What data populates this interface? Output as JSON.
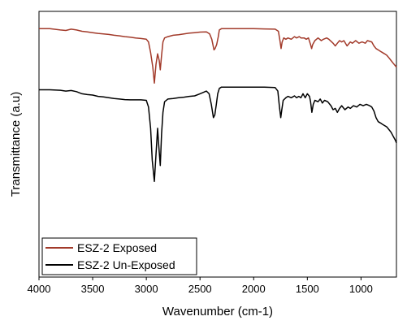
{
  "chart_data": {
    "type": "line",
    "xlabel": "Wavenumber (cm-1)",
    "ylabel": "Transmittance (a.u)",
    "xlim": [
      4000,
      670
    ],
    "ylim": [
      0,
      1
    ],
    "x_ticks": [
      4000,
      3500,
      3000,
      2500,
      2000,
      1500,
      1000
    ],
    "x_tick_labels": [
      "4000",
      "3500",
      "3000",
      "2500",
      "2000",
      "1500",
      "1000"
    ],
    "y_tick_labels_shown": false,
    "grid": false,
    "legend_position": "bottom-left",
    "series": [
      {
        "name": "ESZ-2 Exposed",
        "color": "#a23a2a",
        "points": [
          [
            4000,
            0.935
          ],
          [
            3900,
            0.935
          ],
          [
            3800,
            0.93
          ],
          [
            3750,
            0.928
          ],
          [
            3700,
            0.933
          ],
          [
            3650,
            0.93
          ],
          [
            3600,
            0.925
          ],
          [
            3550,
            0.923
          ],
          [
            3500,
            0.92
          ],
          [
            3450,
            0.917
          ],
          [
            3400,
            0.915
          ],
          [
            3350,
            0.913
          ],
          [
            3300,
            0.91
          ],
          [
            3250,
            0.908
          ],
          [
            3200,
            0.905
          ],
          [
            3150,
            0.903
          ],
          [
            3100,
            0.9
          ],
          [
            3050,
            0.898
          ],
          [
            3000,
            0.895
          ],
          [
            2980,
            0.885
          ],
          [
            2960,
            0.845
          ],
          [
            2940,
            0.79
          ],
          [
            2925,
            0.73
          ],
          [
            2910,
            0.8
          ],
          [
            2895,
            0.84
          ],
          [
            2880,
            0.815
          ],
          [
            2870,
            0.78
          ],
          [
            2858,
            0.835
          ],
          [
            2845,
            0.885
          ],
          [
            2830,
            0.9
          ],
          [
            2800,
            0.905
          ],
          [
            2750,
            0.91
          ],
          [
            2700,
            0.912
          ],
          [
            2650,
            0.915
          ],
          [
            2600,
            0.918
          ],
          [
            2550,
            0.92
          ],
          [
            2500,
            0.922
          ],
          [
            2440,
            0.923
          ],
          [
            2410,
            0.915
          ],
          [
            2390,
            0.895
          ],
          [
            2370,
            0.855
          ],
          [
            2360,
            0.86
          ],
          [
            2345,
            0.875
          ],
          [
            2330,
            0.905
          ],
          [
            2320,
            0.93
          ],
          [
            2300,
            0.935
          ],
          [
            2200,
            0.935
          ],
          [
            2100,
            0.935
          ],
          [
            2000,
            0.935
          ],
          [
            1900,
            0.934
          ],
          [
            1800,
            0.933
          ],
          [
            1770,
            0.925
          ],
          [
            1755,
            0.89
          ],
          [
            1745,
            0.86
          ],
          [
            1735,
            0.885
          ],
          [
            1720,
            0.9
          ],
          [
            1700,
            0.895
          ],
          [
            1680,
            0.9
          ],
          [
            1650,
            0.895
          ],
          [
            1620,
            0.905
          ],
          [
            1600,
            0.9
          ],
          [
            1575,
            0.905
          ],
          [
            1560,
            0.9
          ],
          [
            1530,
            0.9
          ],
          [
            1510,
            0.895
          ],
          [
            1490,
            0.9
          ],
          [
            1470,
            0.875
          ],
          [
            1460,
            0.86
          ],
          [
            1450,
            0.875
          ],
          [
            1430,
            0.89
          ],
          [
            1400,
            0.9
          ],
          [
            1370,
            0.89
          ],
          [
            1350,
            0.895
          ],
          [
            1320,
            0.9
          ],
          [
            1300,
            0.895
          ],
          [
            1260,
            0.88
          ],
          [
            1240,
            0.87
          ],
          [
            1220,
            0.88
          ],
          [
            1200,
            0.89
          ],
          [
            1180,
            0.885
          ],
          [
            1160,
            0.89
          ],
          [
            1130,
            0.87
          ],
          [
            1100,
            0.885
          ],
          [
            1080,
            0.88
          ],
          [
            1050,
            0.89
          ],
          [
            1020,
            0.88
          ],
          [
            990,
            0.885
          ],
          [
            960,
            0.88
          ],
          [
            940,
            0.89
          ],
          [
            900,
            0.885
          ],
          [
            880,
            0.87
          ],
          [
            860,
            0.86
          ],
          [
            840,
            0.855
          ],
          [
            820,
            0.85
          ],
          [
            800,
            0.845
          ],
          [
            780,
            0.84
          ],
          [
            760,
            0.835
          ],
          [
            740,
            0.825
          ],
          [
            720,
            0.815
          ],
          [
            700,
            0.805
          ],
          [
            680,
            0.795
          ],
          [
            670,
            0.79
          ]
        ]
      },
      {
        "name": "ESZ-2 Un-Exposed",
        "color": "#000000",
        "points": [
          [
            4000,
            0.705
          ],
          [
            3900,
            0.705
          ],
          [
            3800,
            0.703
          ],
          [
            3750,
            0.7
          ],
          [
            3700,
            0.702
          ],
          [
            3650,
            0.698
          ],
          [
            3600,
            0.69
          ],
          [
            3550,
            0.687
          ],
          [
            3500,
            0.685
          ],
          [
            3450,
            0.68
          ],
          [
            3400,
            0.678
          ],
          [
            3350,
            0.675
          ],
          [
            3300,
            0.672
          ],
          [
            3250,
            0.67
          ],
          [
            3200,
            0.668
          ],
          [
            3150,
            0.667
          ],
          [
            3100,
            0.667
          ],
          [
            3050,
            0.667
          ],
          [
            3000,
            0.665
          ],
          [
            2980,
            0.64
          ],
          [
            2960,
            0.56
          ],
          [
            2945,
            0.44
          ],
          [
            2925,
            0.36
          ],
          [
            2910,
            0.46
          ],
          [
            2895,
            0.56
          ],
          [
            2885,
            0.5
          ],
          [
            2870,
            0.42
          ],
          [
            2858,
            0.54
          ],
          [
            2845,
            0.62
          ],
          [
            2830,
            0.66
          ],
          [
            2800,
            0.67
          ],
          [
            2750,
            0.672
          ],
          [
            2700,
            0.675
          ],
          [
            2650,
            0.677
          ],
          [
            2600,
            0.68
          ],
          [
            2550,
            0.682
          ],
          [
            2500,
            0.69
          ],
          [
            2440,
            0.7
          ],
          [
            2415,
            0.69
          ],
          [
            2395,
            0.65
          ],
          [
            2375,
            0.6
          ],
          [
            2362,
            0.61
          ],
          [
            2348,
            0.65
          ],
          [
            2335,
            0.69
          ],
          [
            2320,
            0.71
          ],
          [
            2300,
            0.715
          ],
          [
            2200,
            0.715
          ],
          [
            2100,
            0.715
          ],
          [
            2000,
            0.715
          ],
          [
            1900,
            0.715
          ],
          [
            1800,
            0.713
          ],
          [
            1775,
            0.7
          ],
          [
            1760,
            0.64
          ],
          [
            1748,
            0.6
          ],
          [
            1738,
            0.63
          ],
          [
            1725,
            0.665
          ],
          [
            1700,
            0.675
          ],
          [
            1680,
            0.68
          ],
          [
            1650,
            0.675
          ],
          [
            1620,
            0.682
          ],
          [
            1600,
            0.675
          ],
          [
            1580,
            0.68
          ],
          [
            1560,
            0.675
          ],
          [
            1540,
            0.69
          ],
          [
            1520,
            0.675
          ],
          [
            1500,
            0.69
          ],
          [
            1480,
            0.68
          ],
          [
            1470,
            0.66
          ],
          [
            1458,
            0.62
          ],
          [
            1445,
            0.65
          ],
          [
            1430,
            0.665
          ],
          [
            1400,
            0.66
          ],
          [
            1380,
            0.67
          ],
          [
            1360,
            0.655
          ],
          [
            1340,
            0.665
          ],
          [
            1310,
            0.66
          ],
          [
            1280,
            0.645
          ],
          [
            1260,
            0.63
          ],
          [
            1240,
            0.635
          ],
          [
            1220,
            0.62
          ],
          [
            1200,
            0.635
          ],
          [
            1180,
            0.645
          ],
          [
            1150,
            0.63
          ],
          [
            1120,
            0.64
          ],
          [
            1100,
            0.635
          ],
          [
            1070,
            0.645
          ],
          [
            1040,
            0.64
          ],
          [
            1010,
            0.65
          ],
          [
            980,
            0.645
          ],
          [
            950,
            0.65
          ],
          [
            920,
            0.645
          ],
          [
            900,
            0.64
          ],
          [
            880,
            0.625
          ],
          [
            860,
            0.6
          ],
          [
            840,
            0.585
          ],
          [
            820,
            0.58
          ],
          [
            800,
            0.575
          ],
          [
            780,
            0.57
          ],
          [
            760,
            0.565
          ],
          [
            740,
            0.555
          ],
          [
            720,
            0.545
          ],
          [
            700,
            0.53
          ],
          [
            680,
            0.515
          ],
          [
            670,
            0.505
          ]
        ]
      }
    ]
  }
}
